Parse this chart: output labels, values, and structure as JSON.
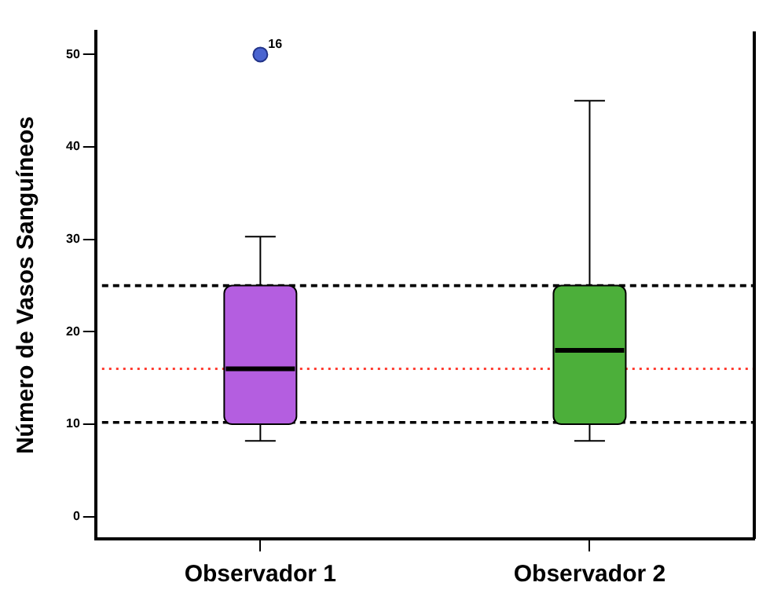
{
  "chart_data": {
    "type": "box",
    "ylabel": "Número de Vasos Sanguíneos",
    "categories": [
      "Observador 1",
      "Observador 2"
    ],
    "colors": [
      "#b45ee0",
      "#4caf3a"
    ],
    "boxes": [
      {
        "low": 8.2,
        "q1": 10,
        "median": 16,
        "q3": 25,
        "high": 30.3,
        "outliers": [
          50
        ]
      },
      {
        "low": 8.2,
        "q1": 10,
        "median": 18,
        "q3": 25,
        "high": 45
      }
    ],
    "ylim": [
      -2.4,
      52.5
    ],
    "yticks": [
      0,
      10,
      20,
      30,
      40,
      50
    ],
    "ref_lines": [
      {
        "axis": "y",
        "value": 25,
        "color": "#000000",
        "line_style": "dashed"
      },
      {
        "axis": "y",
        "value": 10.2,
        "color": "#000000",
        "line_style": "dashed"
      },
      {
        "axis": "y",
        "value": 16,
        "color": "#ff3b30",
        "line_style": "dotted"
      }
    ],
    "annotations": [
      "16"
    ]
  }
}
